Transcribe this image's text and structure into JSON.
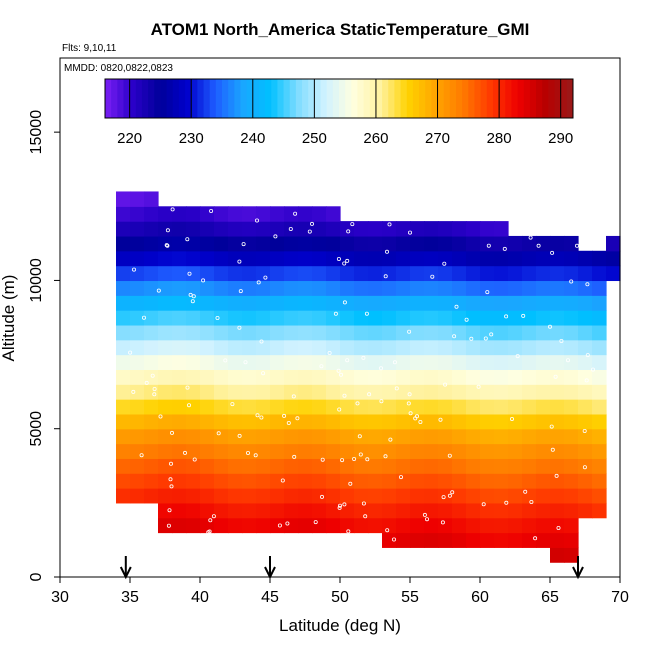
{
  "chart_data": {
    "type": "heatmap",
    "title": "ATOM1 North_America StaticTemperature_GMI",
    "subtitle_flights": "Flts: 9,10,11",
    "subtitle_dates": "MMDD: 0820,0822,0823",
    "xlabel": "Latitude (deg N)",
    "ylabel": "Altitude (m)",
    "xlim": [
      30,
      70
    ],
    "ylim": [
      0,
      17500
    ],
    "x_ticks": [
      "30",
      "35",
      "40",
      "45",
      "50",
      "55",
      "60",
      "65",
      "70"
    ],
    "y_ticks": [
      "0",
      "5000",
      "10000",
      "15000"
    ],
    "colorbar": {
      "range": [
        216,
        292
      ],
      "ticks": [
        "220",
        "230",
        "240",
        "250",
        "260",
        "270",
        "280",
        "290"
      ],
      "colors": [
        "#7b1ff5",
        "#2a00c8",
        "#00009a",
        "#0000cc",
        "#1e5cff",
        "#1aa6ff",
        "#00c0ff",
        "#7fdcff",
        "#d0f2ff",
        "#ffffe0",
        "#fff2a0",
        "#ffd200",
        "#ffa500",
        "#ff7a00",
        "#ff3a00",
        "#ee0000",
        "#b80000",
        "#9a1a1a"
      ]
    },
    "arrows_latitude": [
      34.7,
      45,
      67
    ],
    "columns": [
      {
        "lat": 35,
        "alt_min": 2500,
        "alt_max": 12900
      },
      {
        "lat": 37,
        "alt_min": 1500,
        "alt_max": 12500
      },
      {
        "lat": 42,
        "alt_min": 1500,
        "alt_max": 12500
      },
      {
        "lat": 47,
        "alt_min": 1500,
        "alt_max": 12500
      },
      {
        "lat": 50,
        "alt_min": 1500,
        "alt_max": 12000
      },
      {
        "lat": 53,
        "alt_min": 1000,
        "alt_max": 12000
      },
      {
        "lat": 57,
        "alt_min": 1000,
        "alt_max": 12000
      },
      {
        "lat": 62,
        "alt_min": 1000,
        "alt_max": 11500
      },
      {
        "lat": 65,
        "alt_min": 500,
        "alt_max": 11500
      },
      {
        "lat": 67,
        "alt_min": 2000,
        "alt_max": 11000
      },
      {
        "lat": 69,
        "alt_min": 10000,
        "alt_max": 11500
      }
    ],
    "temperature_profile": [
      {
        "alt": 1000,
        "temp": 285
      },
      {
        "alt": 2000,
        "temp": 282
      },
      {
        "alt": 3000,
        "temp": 278
      },
      {
        "alt": 4000,
        "temp": 274
      },
      {
        "alt": 5000,
        "temp": 269
      },
      {
        "alt": 6000,
        "temp": 262
      },
      {
        "alt": 7000,
        "temp": 256
      },
      {
        "alt": 8000,
        "temp": 249
      },
      {
        "alt": 9000,
        "temp": 242
      },
      {
        "alt": 10000,
        "temp": 234
      },
      {
        "alt": 11000,
        "temp": 226
      },
      {
        "alt": 12000,
        "temp": 220
      }
    ]
  }
}
